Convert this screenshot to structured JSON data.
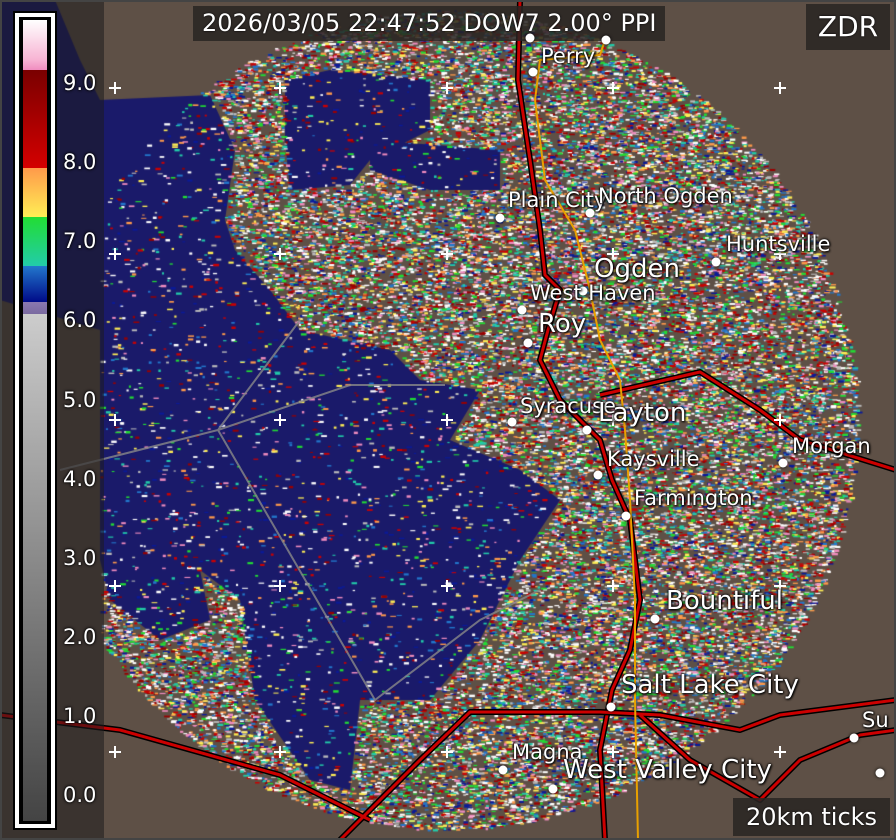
{
  "title": "2026/03/05 22:47:52 DOW7 2.00° PPI",
  "product": "ZDR",
  "scale_note": "20km ticks",
  "colorbar": {
    "labels": [
      "9.0",
      "8.0",
      "7.0",
      "6.0",
      "5.0",
      "4.0",
      "3.0",
      "2.0",
      "1.0",
      "0.0"
    ],
    "range": [
      0.0,
      9.0
    ]
  },
  "colors": {
    "land": "#5e5046",
    "water": "#1a1a6a",
    "highway": "#cc0000",
    "road": "#e8a000"
  },
  "cities": [
    {
      "name": "Perry",
      "size": "normal"
    },
    {
      "name": "Plain City",
      "size": "normal"
    },
    {
      "name": "North Ogden",
      "size": "normal"
    },
    {
      "name": "Huntsville",
      "size": "normal"
    },
    {
      "name": "Ogden",
      "size": "big"
    },
    {
      "name": "West Haven",
      "size": "normal"
    },
    {
      "name": "Roy",
      "size": "big"
    },
    {
      "name": "Syracuse",
      "size": "normal"
    },
    {
      "name": "Layton",
      "size": "big"
    },
    {
      "name": "Kaysville",
      "size": "normal"
    },
    {
      "name": "Morgan",
      "size": "normal"
    },
    {
      "name": "Farmington",
      "size": "normal"
    },
    {
      "name": "Bountiful",
      "size": "big"
    },
    {
      "name": "Salt Lake City",
      "size": "big"
    },
    {
      "name": "Magna",
      "size": "normal"
    },
    {
      "name": "West Valley City",
      "size": "big"
    },
    {
      "name": "Su",
      "size": "normal"
    }
  ]
}
